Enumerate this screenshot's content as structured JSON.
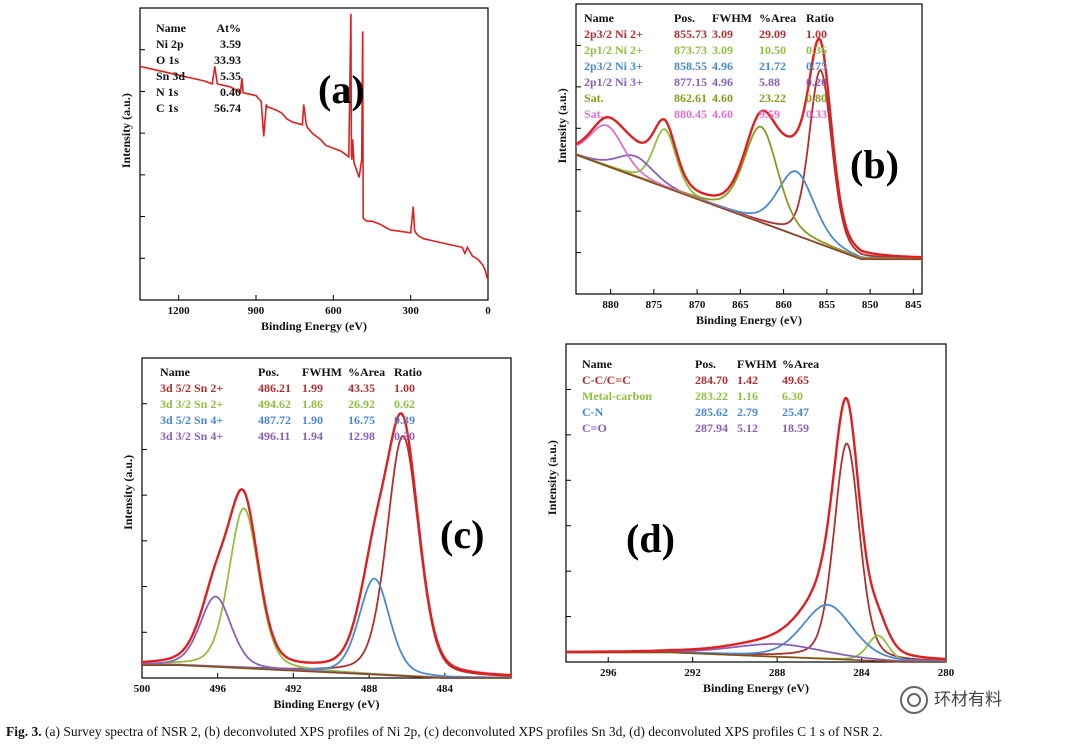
{
  "colors": {
    "envelope": "#e02020",
    "background_line": "#8a4a1a",
    "peak_colors": [
      "#b03030",
      "#8fc040",
      "#4a88d0",
      "#8a60b8",
      "#8a9a20",
      "#e070d0"
    ]
  },
  "caption": {
    "label": "Fig. 3.",
    "text": "(a) Survey spectra of NSR 2, (b) deconvoluted XPS profiles of Ni 2p, (c) deconvoluted XPS profiles Sn 3d, (d) deconvoluted XPS profiles C 1 s of NSR 2."
  },
  "watermark": {
    "text": "环材有料"
  },
  "chart_data": [
    {
      "id": "a",
      "type": "line",
      "panel_label": "(a)",
      "xlabel": "Binding Energy (eV)",
      "ylabel": "Intensity (a.u.)",
      "x_reversed": true,
      "xlim": [
        1350,
        0
      ],
      "ylim": [
        0,
        100
      ],
      "xticks": [
        1200,
        900,
        600,
        300,
        0
      ],
      "table": {
        "headers": [
          "Name",
          "At%"
        ],
        "rows": [
          {
            "cells": [
              "Ni 2p",
              "3.59"
            ],
            "color": "#111111"
          },
          {
            "cells": [
              "O 1s",
              "33.93"
            ],
            "color": "#111111"
          },
          {
            "cells": [
              "Sn 3d",
              "5.35"
            ],
            "color": "#111111"
          },
          {
            "cells": [
              "N 1s",
              "0.40"
            ],
            "color": "#111111"
          },
          {
            "cells": [
              "C 1s",
              "56.74"
            ],
            "color": "#111111"
          }
        ]
      },
      "series": [
        {
          "color": "#e02020",
          "x": [
            1350,
            1300,
            1250,
            1200,
            1150,
            1100,
            1070,
            1060,
            1050,
            1000,
            960,
            955,
            950,
            900,
            880,
            870,
            860,
            855,
            850,
            820,
            800,
            780,
            760,
            720,
            715,
            705,
            700,
            680,
            650,
            640,
            630,
            600,
            570,
            540,
            532,
            530,
            528,
            525,
            520,
            500,
            490,
            486,
            484,
            470,
            450,
            420,
            400,
            380,
            300,
            290,
            285,
            280,
            270,
            250,
            200,
            150,
            100,
            90,
            80,
            60,
            40,
            20,
            10,
            5,
            0
          ],
          "y": [
            80,
            79,
            78,
            77,
            76,
            75,
            74,
            80,
            74,
            73,
            71,
            76,
            71,
            70,
            68,
            56,
            67,
            66,
            66,
            65,
            64,
            62,
            61,
            60,
            67,
            60,
            59,
            57,
            55,
            54,
            53,
            52,
            51,
            49,
            98,
            50,
            48,
            55,
            47,
            42,
            48,
            92,
            28,
            27,
            27,
            26,
            25,
            24,
            23,
            32,
            24,
            23,
            22,
            21,
            20,
            19,
            18,
            16,
            18,
            15,
            14,
            12,
            10,
            8,
            7
          ]
        }
      ]
    },
    {
      "id": "b",
      "type": "line",
      "panel_label": "(b)",
      "xlabel": "Binding Energy (eV)",
      "ylabel": "Intensity (a.u.)",
      "x_reversed": true,
      "xlim": [
        884,
        844
      ],
      "ylim": [
        0,
        100
      ],
      "xticks": [
        880,
        875,
        870,
        865,
        860,
        855,
        850,
        845
      ],
      "table": {
        "headers": [
          "Name",
          "Pos.",
          "FWHM",
          "%Area",
          "Ratio"
        ],
        "rows": [
          {
            "cells": [
              "2p3/2 Ni 2+",
              "855.73",
              "3.09",
              "29.09",
              "1.00"
            ],
            "color": "#b03030"
          },
          {
            "cells": [
              "2p1/2 Ni 2+",
              "873.73",
              "3.09",
              "10.50",
              "0.36"
            ],
            "color": "#8fc040"
          },
          {
            "cells": [
              "2p3/2 Ni 3+",
              "858.55",
              "4.96",
              "21.72",
              "0.75"
            ],
            "color": "#4a88d0"
          },
          {
            "cells": [
              "2p1/2 Ni 3+",
              "877.15",
              "4.96",
              "5.88",
              "0.20"
            ],
            "color": "#8a60b8"
          },
          {
            "cells": [
              "Sat.",
              "862.61",
              "4.60",
              "23.22",
              "0.80"
            ],
            "color": "#8a9a20"
          },
          {
            "cells": [
              "Sat.",
              "880.45",
              "4.60",
              "9.59",
              "0.33"
            ],
            "color": "#e070d0"
          }
        ]
      },
      "background": {
        "x": [
          884,
          851
        ],
        "y": [
          48,
          12
        ]
      },
      "peaks": [
        {
          "center": 855.73,
          "fwhm": 3.09,
          "height": 60,
          "color": "#b03030"
        },
        {
          "center": 873.73,
          "fwhm": 3.09,
          "height": 20,
          "color": "#8fc040"
        },
        {
          "center": 858.55,
          "fwhm": 4.96,
          "height": 22,
          "color": "#4a88d0"
        },
        {
          "center": 877.15,
          "fwhm": 4.96,
          "height": 7,
          "color": "#8a60b8"
        },
        {
          "center": 862.61,
          "fwhm": 4.6,
          "height": 33,
          "color": "#8a9a20"
        },
        {
          "center": 880.45,
          "fwhm": 4.6,
          "height": 14,
          "color": "#e070d0"
        }
      ]
    },
    {
      "id": "c",
      "type": "line",
      "panel_label": "(c)",
      "xlabel": "Binding Energy (eV)",
      "ylabel": "Intensity (a.u.)",
      "x_reversed": true,
      "xlim": [
        500,
        480.5
      ],
      "ylim": [
        0,
        100
      ],
      "xticks": [
        500,
        496,
        492,
        488,
        484,
        480
      ],
      "table": {
        "headers": [
          "Name",
          "Pos.",
          "FWHM",
          "%Area",
          "Ratio"
        ],
        "rows": [
          {
            "cells": [
              "3d 5/2 Sn 2+",
              "486.21",
              "1.99",
              "43.35",
              "1.00"
            ],
            "color": "#b03030"
          },
          {
            "cells": [
              "3d 3/2 Sn 2+",
              "494.62",
              "1.86",
              "26.92",
              "0.62"
            ],
            "color": "#8fc040"
          },
          {
            "cells": [
              "3d 5/2 Sn 4+",
              "487.72",
              "1.90",
              "16.75",
              "0.39"
            ],
            "color": "#4a88d0"
          },
          {
            "cells": [
              "3d 3/2 Sn 4+",
              "496.11",
              "1.94",
              "12.98",
              "0.30"
            ],
            "color": "#8a60b8"
          }
        ]
      },
      "background": {
        "x": [
          498,
          484
        ],
        "y": [
          4,
          0
        ]
      },
      "peaks": [
        {
          "center": 486.21,
          "fwhm": 1.99,
          "height": 75,
          "color": "#b03030"
        },
        {
          "center": 494.62,
          "fwhm": 1.86,
          "height": 50,
          "color": "#8fc040"
        },
        {
          "center": 487.72,
          "fwhm": 1.9,
          "height": 30,
          "color": "#4a88d0"
        },
        {
          "center": 496.11,
          "fwhm": 1.94,
          "height": 22,
          "color": "#8a60b8"
        }
      ]
    },
    {
      "id": "d",
      "type": "line",
      "panel_label": "(d)",
      "xlabel": "Binding Energy (eV)",
      "ylabel": "Intensity (a.u.)",
      "x_reversed": true,
      "xlim": [
        298,
        280
      ],
      "ylim": [
        0,
        100
      ],
      "xticks": [
        296,
        292,
        288,
        284,
        280
      ],
      "table": {
        "headers": [
          "Name",
          "Pos.",
          "FWHM",
          "%Area"
        ],
        "rows": [
          {
            "cells": [
              "C-C/C=C",
              "284.70",
              "1.42",
              "49.65"
            ],
            "color": "#b03030"
          },
          {
            "cells": [
              "Metal-carbon",
              "283.22",
              "1.16",
              "6.30"
            ],
            "color": "#8fc040"
          },
          {
            "cells": [
              "C-N",
              "285.62",
              "2.79",
              "25.47"
            ],
            "color": "#4a88d0"
          },
          {
            "cells": [
              "C=O",
              "287.94",
              "5.12",
              "18.59"
            ],
            "color": "#8a60b8"
          }
        ]
      },
      "background": {
        "x": [
          293,
          282
        ],
        "y": [
          3,
          0
        ]
      },
      "peaks": [
        {
          "center": 284.7,
          "fwhm": 1.42,
          "height": 68,
          "color": "#b03030"
        },
        {
          "center": 283.22,
          "fwhm": 1.16,
          "height": 8,
          "color": "#8fc040"
        },
        {
          "center": 285.62,
          "fwhm": 2.79,
          "height": 17,
          "color": "#4a88d0"
        },
        {
          "center": 287.94,
          "fwhm": 5.12,
          "height": 4,
          "color": "#8a60b8"
        }
      ]
    }
  ]
}
